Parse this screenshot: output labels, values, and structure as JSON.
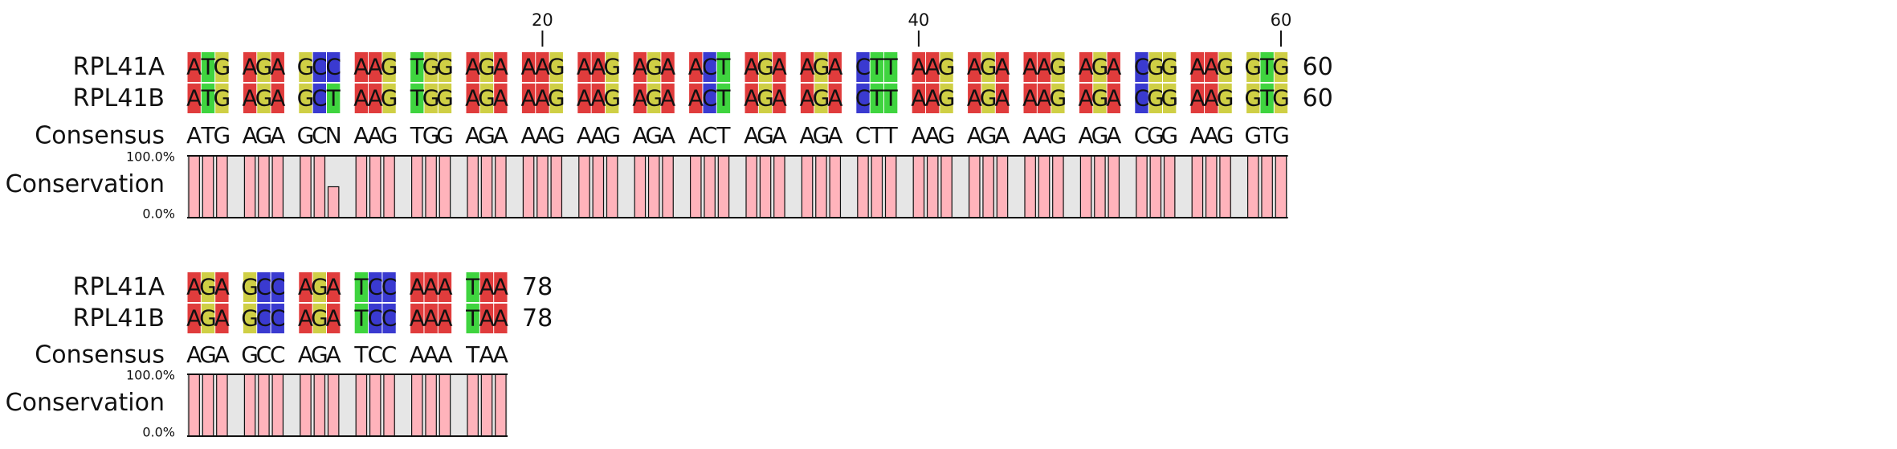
{
  "colors": {
    "A": "#e03c3c",
    "G": "#cfcf45",
    "C": "#3a3ad0",
    "T": "#3fd43f",
    "N": "#ffffff",
    "conservation_fill": "#ffb3bb",
    "conservation_bg": "#e6e6e6",
    "text": "#111111"
  },
  "labels": {
    "consensus": "Consensus",
    "conservation": "Conservation",
    "scale_top": "100.0%",
    "scale_bottom": "0.0%"
  },
  "blocks": [
    {
      "start": 1,
      "end": 60,
      "ruler_ticks": [
        20,
        40,
        60
      ],
      "sequences": [
        {
          "name": "RPL41A",
          "residues": "ATGAGAGCCAAGTGGAGAAAGAAGAGAACTAGAAGACTTAAGAGAAAGAGACGGAAGGTG",
          "end_label": "60"
        },
        {
          "name": "RPL41B",
          "residues": "ATGAGAGCTAAGTGGAGAAAGAAGAGAACTAGAAGACTTAAGAGAAAGAGACGGAAGGTG",
          "end_label": "60"
        }
      ],
      "consensus": "ATGAGAGCNAAGTGGAGAAAGAAGAGAACTAGAAGACTTAAGAGAAAGAGACGGAAGGTG",
      "conservation": [
        100,
        100,
        100,
        100,
        100,
        100,
        100,
        100,
        50,
        100,
        100,
        100,
        100,
        100,
        100,
        100,
        100,
        100,
        100,
        100,
        100,
        100,
        100,
        100,
        100,
        100,
        100,
        100,
        100,
        100,
        100,
        100,
        100,
        100,
        100,
        100,
        100,
        100,
        100,
        100,
        100,
        100,
        100,
        100,
        100,
        100,
        100,
        100,
        100,
        100,
        100,
        100,
        100,
        100,
        100,
        100,
        100,
        100,
        100,
        100
      ]
    },
    {
      "start": 61,
      "end": 78,
      "ruler_ticks": [],
      "sequences": [
        {
          "name": "RPL41A",
          "residues": "AGAGCCAGATCCAAATAA",
          "end_label": "78"
        },
        {
          "name": "RPL41B",
          "residues": "AGAGCCAGATCCAAATAA",
          "end_label": "78"
        }
      ],
      "consensus": "AGAGCCAGATCCAAATAA",
      "conservation": [
        100,
        100,
        100,
        100,
        100,
        100,
        100,
        100,
        100,
        100,
        100,
        100,
        100,
        100,
        100,
        100,
        100,
        100
      ]
    }
  ]
}
